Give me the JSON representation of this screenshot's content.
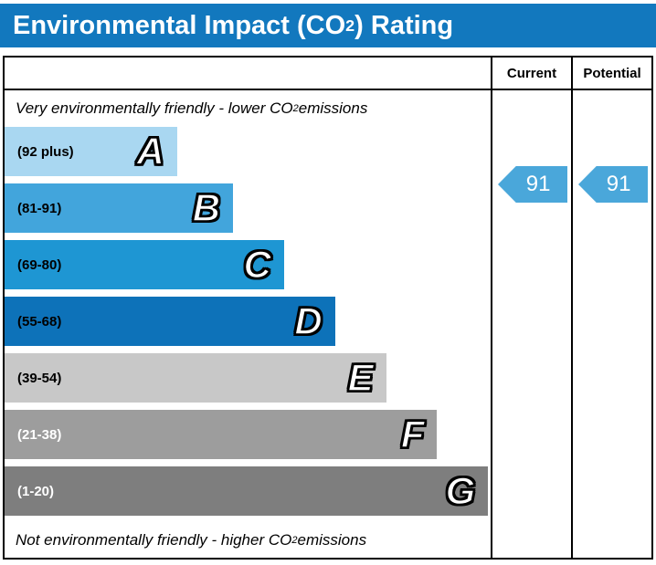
{
  "title": {
    "pre": "Environmental Impact (CO",
    "sub": "2",
    "post": ") Rating"
  },
  "colors": {
    "title_bg": "#1278be",
    "title_text": "#ffffff",
    "arrow": "#4aa7da"
  },
  "header": {
    "current": "Current",
    "potential": "Potential"
  },
  "captions": {
    "top": {
      "pre": "Very environmentally friendly - lower CO",
      "sub": "2",
      "post": " emissions"
    },
    "bottom": {
      "pre": "Not environmentally friendly - higher CO",
      "sub": "2",
      "post": " emissions"
    }
  },
  "bands": [
    {
      "letter": "A",
      "range": "(92 plus)",
      "color": "#a9d7f1",
      "label_color": "#000000",
      "width_pct": "35.5%"
    },
    {
      "letter": "B",
      "range": "(81-91)",
      "color": "#42a5dc",
      "label_color": "#000000",
      "width_pct": "47%"
    },
    {
      "letter": "C",
      "range": "(69-80)",
      "color": "#1e96d3",
      "label_color": "#000000",
      "width_pct": "57.5%"
    },
    {
      "letter": "D",
      "range": "(55-68)",
      "color": "#0d72b9",
      "label_color": "#000000",
      "width_pct": "68%"
    },
    {
      "letter": "E",
      "range": "(39-54)",
      "color": "#c8c8c8",
      "label_color": "#000000",
      "width_pct": "78.5%"
    },
    {
      "letter": "F",
      "range": "(21-38)",
      "color": "#9d9d9d",
      "label_color": "#ffffff",
      "width_pct": "89%"
    },
    {
      "letter": "G",
      "range": "(1-20)",
      "color": "#7e7e7e",
      "label_color": "#ffffff",
      "width_pct": "99.5%"
    }
  ],
  "ratings": {
    "current": {
      "value": "91",
      "band": "B"
    },
    "potential": {
      "value": "91",
      "band": "B"
    }
  },
  "chart_data": {
    "type": "bar",
    "title": "Environmental Impact (CO2) Rating",
    "categories": [
      "A",
      "B",
      "C",
      "D",
      "E",
      "F",
      "G"
    ],
    "ranges": [
      "92 plus",
      "81-91",
      "69-80",
      "55-68",
      "39-54",
      "21-38",
      "1-20"
    ],
    "bar_colors": [
      "#a9d7f1",
      "#42a5dc",
      "#1e96d3",
      "#0d72b9",
      "#c8c8c8",
      "#9d9d9d",
      "#7e7e7e"
    ],
    "bar_lengths_relative": [
      0.355,
      0.47,
      0.575,
      0.68,
      0.785,
      0.89,
      0.995
    ],
    "columns": [
      "Current",
      "Potential"
    ],
    "current": 91,
    "potential": 91,
    "annotations": [
      "Very environmentally friendly - lower CO2 emissions",
      "Not environmentally friendly - higher CO2 emissions"
    ],
    "legend_position": "none",
    "grid": false
  }
}
